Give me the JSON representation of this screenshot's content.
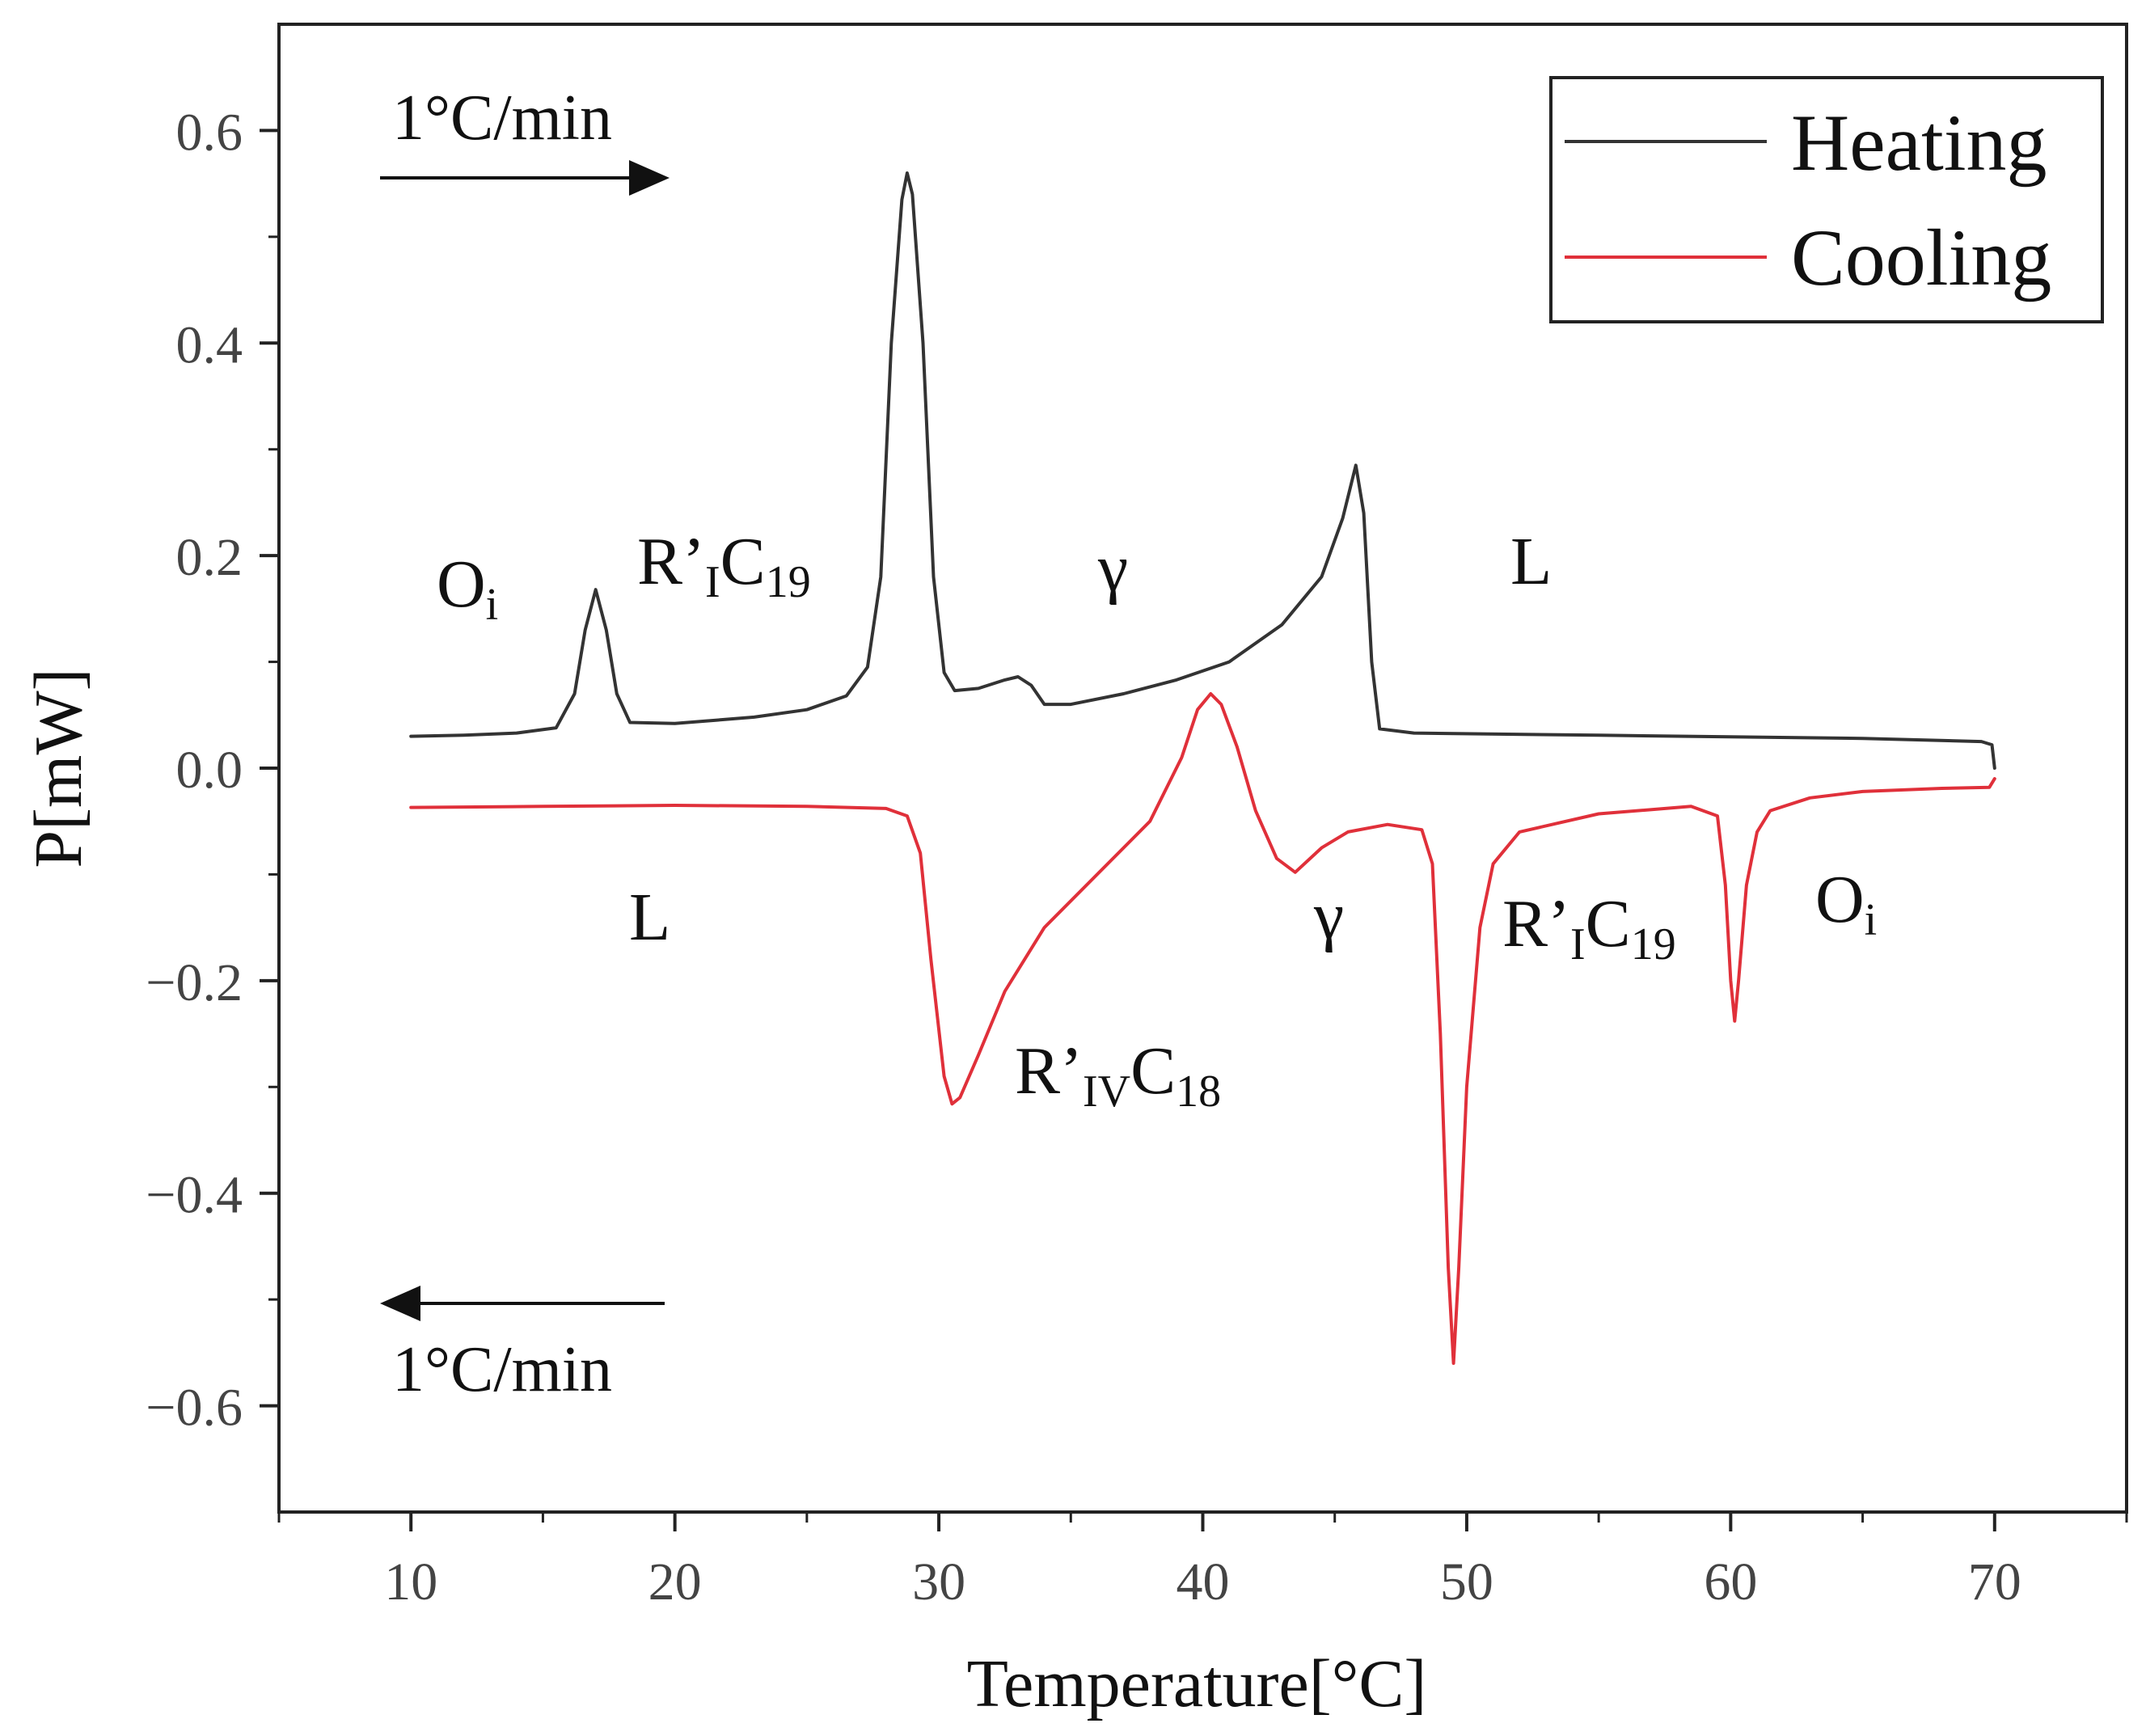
{
  "chart_data": {
    "type": "line",
    "title": "",
    "xlabel": "Temperature[°C]",
    "ylabel": "P[mW]",
    "xlim": [
      5,
      75
    ],
    "ylim": [
      -0.7,
      0.7
    ],
    "xticks": [
      10,
      20,
      30,
      40,
      50,
      60,
      70
    ],
    "xtick_labels": [
      "10",
      "20",
      "30",
      "40",
      "50",
      "60",
      "70"
    ],
    "yticks": [
      -0.6,
      -0.4,
      -0.2,
      0.0,
      0.2,
      0.4,
      0.6
    ],
    "ytick_labels": [
      "−0.6",
      "−0.4",
      "−0.2",
      "0.0",
      "0.2",
      "0.4",
      "0.6"
    ],
    "grid": false,
    "legend": {
      "position": "top-right",
      "entries": [
        {
          "name": "Heating",
          "color": "#333333"
        },
        {
          "name": "Cooling",
          "color": "#e0303a"
        }
      ]
    },
    "series": [
      {
        "name": "Heating",
        "color": "#333333",
        "points": [
          [
            10,
            0.03
          ],
          [
            12,
            0.031
          ],
          [
            14,
            0.033
          ],
          [
            15.5,
            0.038
          ],
          [
            16.2,
            0.07
          ],
          [
            16.6,
            0.13
          ],
          [
            17.0,
            0.168
          ],
          [
            17.4,
            0.13
          ],
          [
            17.8,
            0.07
          ],
          [
            18.3,
            0.043
          ],
          [
            20,
            0.042
          ],
          [
            23,
            0.048
          ],
          [
            25,
            0.055
          ],
          [
            26.5,
            0.068
          ],
          [
            27.3,
            0.095
          ],
          [
            27.8,
            0.18
          ],
          [
            28.2,
            0.4
          ],
          [
            28.6,
            0.535
          ],
          [
            28.8,
            0.56
          ],
          [
            29.0,
            0.54
          ],
          [
            29.4,
            0.4
          ],
          [
            29.8,
            0.18
          ],
          [
            30.2,
            0.09
          ],
          [
            30.6,
            0.073
          ],
          [
            31.5,
            0.075
          ],
          [
            32.5,
            0.083
          ],
          [
            33.0,
            0.086
          ],
          [
            33.5,
            0.078
          ],
          [
            34.0,
            0.06
          ],
          [
            35.0,
            0.06
          ],
          [
            37.0,
            0.07
          ],
          [
            39.0,
            0.083
          ],
          [
            41.0,
            0.1
          ],
          [
            43.0,
            0.135
          ],
          [
            44.5,
            0.18
          ],
          [
            45.3,
            0.235
          ],
          [
            45.8,
            0.285
          ],
          [
            46.1,
            0.24
          ],
          [
            46.4,
            0.1
          ],
          [
            46.7,
            0.037
          ],
          [
            48.0,
            0.033
          ],
          [
            55.0,
            0.031
          ],
          [
            65.0,
            0.028
          ],
          [
            69.5,
            0.025
          ],
          [
            69.9,
            0.022
          ],
          [
            70.0,
            0.0
          ]
        ]
      },
      {
        "name": "Cooling",
        "color": "#e0303a",
        "points": [
          [
            70.0,
            -0.01
          ],
          [
            69.8,
            -0.018
          ],
          [
            68.0,
            -0.019
          ],
          [
            65.0,
            -0.022
          ],
          [
            63.0,
            -0.028
          ],
          [
            61.5,
            -0.04
          ],
          [
            61.0,
            -0.06
          ],
          [
            60.6,
            -0.11
          ],
          [
            60.3,
            -0.2
          ],
          [
            60.15,
            -0.238
          ],
          [
            60.0,
            -0.2
          ],
          [
            59.8,
            -0.11
          ],
          [
            59.5,
            -0.045
          ],
          [
            58.5,
            -0.036
          ],
          [
            55.0,
            -0.043
          ],
          [
            52.0,
            -0.06
          ],
          [
            51.0,
            -0.09
          ],
          [
            50.5,
            -0.15
          ],
          [
            50.0,
            -0.3
          ],
          [
            49.7,
            -0.47
          ],
          [
            49.5,
            -0.56
          ],
          [
            49.3,
            -0.47
          ],
          [
            49.0,
            -0.25
          ],
          [
            48.7,
            -0.09
          ],
          [
            48.3,
            -0.058
          ],
          [
            47.0,
            -0.053
          ],
          [
            45.5,
            -0.06
          ],
          [
            44.5,
            -0.075
          ],
          [
            43.5,
            -0.098
          ],
          [
            42.8,
            -0.085
          ],
          [
            42.0,
            -0.04
          ],
          [
            41.3,
            0.02
          ],
          [
            40.7,
            0.06
          ],
          [
            40.3,
            0.07
          ],
          [
            39.8,
            0.055
          ],
          [
            39.2,
            0.01
          ],
          [
            38.0,
            -0.05
          ],
          [
            36.0,
            -0.1
          ],
          [
            34.0,
            -0.15
          ],
          [
            32.5,
            -0.21
          ],
          [
            31.5,
            -0.27
          ],
          [
            30.8,
            -0.31
          ],
          [
            30.5,
            -0.316
          ],
          [
            30.2,
            -0.29
          ],
          [
            29.7,
            -0.18
          ],
          [
            29.3,
            -0.08
          ],
          [
            28.8,
            -0.045
          ],
          [
            28.0,
            -0.038
          ],
          [
            25.0,
            -0.036
          ],
          [
            20.0,
            -0.035
          ],
          [
            15.0,
            -0.036
          ],
          [
            10.0,
            -0.037
          ]
        ]
      }
    ],
    "annotations": {
      "heating_phases": [
        {
          "base": "O",
          "sub": "i",
          "tail": ""
        },
        {
          "base": "R’",
          "sub": "I",
          "tail": "C",
          "sub2": "19"
        },
        {
          "base": "γ",
          "sub": "",
          "tail": ""
        },
        {
          "base": "L",
          "sub": "",
          "tail": ""
        }
      ],
      "cooling_phases": [
        {
          "base": "L",
          "sub": "",
          "tail": ""
        },
        {
          "base": "R’",
          "sub": "IV",
          "tail": "C",
          "sub2": "18"
        },
        {
          "base": "γ",
          "sub": "",
          "tail": ""
        },
        {
          "base": "R’",
          "sub": "I",
          "tail": "C",
          "sub2": "19"
        },
        {
          "base": "O",
          "sub": "i",
          "tail": ""
        }
      ],
      "heating_rate_label": "1°C/min",
      "cooling_rate_label": "1°C/min"
    }
  }
}
